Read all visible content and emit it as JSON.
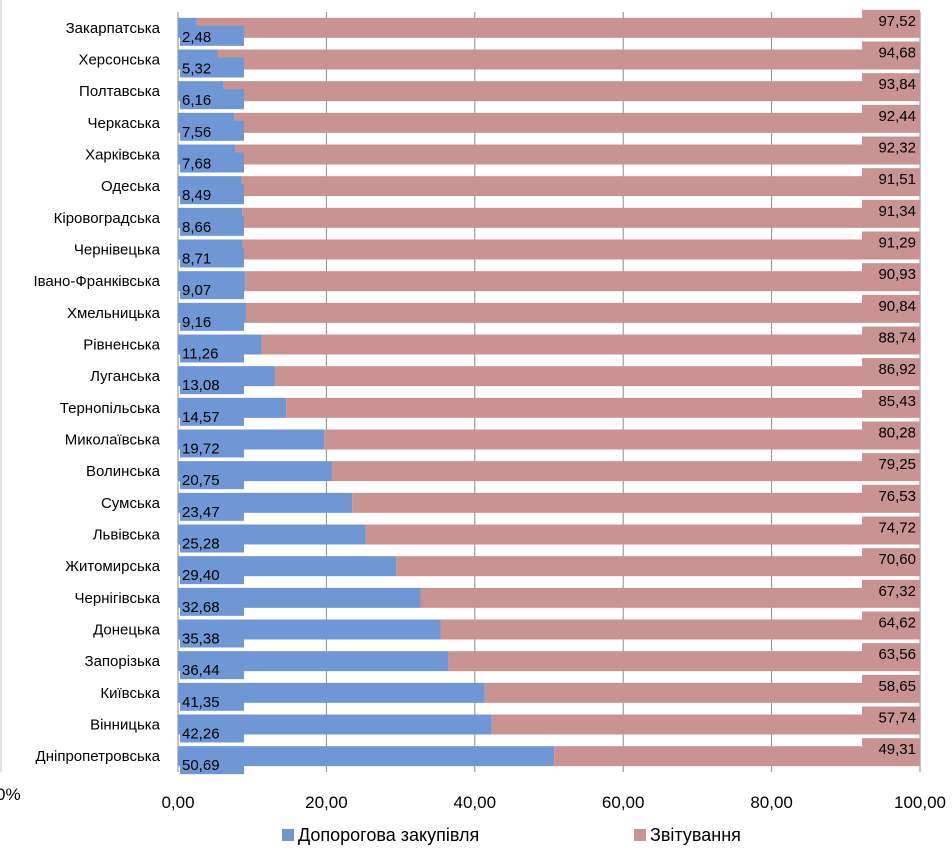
{
  "chart_data": {
    "type": "bar",
    "orientation": "horizontal",
    "stacked": true,
    "categories": [
      "Закарпатська",
      "Херсонська",
      "Полтавська",
      "Черкаська",
      "Харківська",
      "Одеська",
      "Кіровоградська",
      "Чернівецька",
      "Івано-Франківська",
      "Хмельницька",
      "Рівненська",
      "Луганська",
      "Тернопільська",
      "Миколаївська",
      "Волинська",
      "Сумська",
      "Львівська",
      "Житомирська",
      "Чернігівська",
      "Донецька",
      "Запорізька",
      "Київська",
      "Вінницька",
      "Дніпропетровська"
    ],
    "series": [
      {
        "name": "Допорогова закупівля",
        "color": "#6f97d6",
        "values": [
          2.48,
          5.32,
          6.16,
          7.56,
          7.68,
          8.49,
          8.66,
          8.71,
          9.07,
          9.16,
          11.26,
          13.08,
          14.57,
          19.72,
          20.75,
          23.47,
          25.28,
          29.4,
          32.68,
          35.38,
          36.44,
          41.35,
          42.26,
          50.69
        ],
        "labels": [
          "2,48",
          "5,32",
          "6,16",
          "7,56",
          "7,68",
          "8,49",
          "8,66",
          "8,71",
          "9,07",
          "9,16",
          "11,26",
          "13,08",
          "14,57",
          "19,72",
          "20,75",
          "23,47",
          "25,28",
          "29,40",
          "32,68",
          "35,38",
          "36,44",
          "41,35",
          "42,26",
          "50,69"
        ]
      },
      {
        "name": "Звітування",
        "color": "#c99392",
        "values": [
          97.52,
          94.68,
          93.84,
          92.44,
          92.32,
          91.51,
          91.34,
          91.29,
          90.93,
          90.84,
          88.74,
          86.92,
          85.43,
          80.28,
          79.25,
          76.53,
          74.72,
          70.6,
          67.32,
          64.62,
          63.56,
          58.65,
          57.74,
          49.31
        ],
        "labels": [
          "97,52",
          "94,68",
          "93,84",
          "92,44",
          "92,32",
          "91,51",
          "91,34",
          "91,29",
          "90,93",
          "90,84",
          "88,74",
          "86,92",
          "85,43",
          "80,28",
          "79,25",
          "76,53",
          "74,72",
          "70,60",
          "67,32",
          "64,62",
          "63,56",
          "58,65",
          "57,74",
          "49,31"
        ]
      }
    ],
    "xlim": [
      0,
      100
    ],
    "xticks": [
      0,
      20,
      40,
      60,
      80,
      100
    ],
    "xtick_labels": [
      "0,00",
      "20,00",
      "40,00",
      "60,00",
      "80,00",
      "100,00"
    ],
    "grid": true,
    "legend": "bottom",
    "fragment_label": "0%"
  }
}
